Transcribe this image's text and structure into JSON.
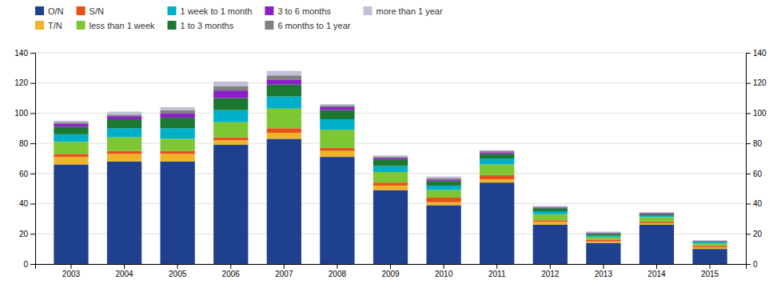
{
  "chart_data": {
    "type": "bar",
    "stacked": true,
    "grid": true,
    "legend": "top",
    "categories": [
      "2003",
      "2004",
      "2005",
      "2006",
      "2007",
      "2008",
      "2009",
      "2010",
      "2011",
      "2012",
      "2013",
      "2014",
      "2015"
    ],
    "series": [
      {
        "name": "O/N",
        "color": "#1f3f8f",
        "values": [
          66,
          68,
          68,
          79,
          83,
          71,
          49,
          39,
          54,
          26,
          14,
          26,
          10
        ]
      },
      {
        "name": "T/N",
        "color": "#f0b429",
        "values": [
          5,
          5,
          5,
          3,
          4,
          4,
          3,
          2,
          2,
          2,
          1,
          1,
          1
        ]
      },
      {
        "name": "S/N",
        "color": "#e8501a",
        "values": [
          2,
          2,
          2,
          2,
          3,
          2,
          2,
          3,
          3,
          1,
          1,
          1,
          1
        ]
      },
      {
        "name": "less than 1 week",
        "color": "#7dc832",
        "values": [
          8,
          9,
          8,
          10,
          13,
          12,
          7,
          5,
          7,
          4,
          2,
          3,
          1.5
        ]
      },
      {
        "name": "1 week to 1 month",
        "color": "#00b0c8",
        "values": [
          5,
          6,
          7,
          8,
          8,
          7,
          4,
          3,
          4,
          2,
          1,
          1,
          1
        ]
      },
      {
        "name": "1 to 3 months",
        "color": "#1a7830",
        "values": [
          5,
          6,
          7,
          8,
          8,
          6,
          4,
          3,
          3,
          2,
          1,
          1,
          0.5
        ]
      },
      {
        "name": "3 to 6 months",
        "color": "#8b1fc8",
        "values": [
          2,
          2,
          3,
          5,
          3,
          2,
          1,
          1,
          1,
          0.5,
          0.5,
          0.5,
          0.3
        ]
      },
      {
        "name": "6 months to 1 year",
        "color": "#808080",
        "values": [
          1,
          1,
          2,
          3,
          3,
          1,
          1,
          1,
          1,
          0.5,
          0.5,
          0.5,
          0.2
        ]
      },
      {
        "name": "more than 1 year",
        "color": "#c0c0d8",
        "values": [
          1,
          2,
          2,
          3,
          3,
          1,
          1,
          1,
          0.5,
          0.5,
          0.5,
          0.5,
          0.2
        ]
      }
    ],
    "ylim": [
      0,
      140
    ],
    "yticks": [
      0,
      20,
      40,
      60,
      80,
      100,
      120,
      140
    ],
    "y2lim": [
      0,
      140
    ],
    "y2ticks": [
      0,
      20,
      40,
      60,
      80,
      100,
      120,
      140
    ]
  }
}
